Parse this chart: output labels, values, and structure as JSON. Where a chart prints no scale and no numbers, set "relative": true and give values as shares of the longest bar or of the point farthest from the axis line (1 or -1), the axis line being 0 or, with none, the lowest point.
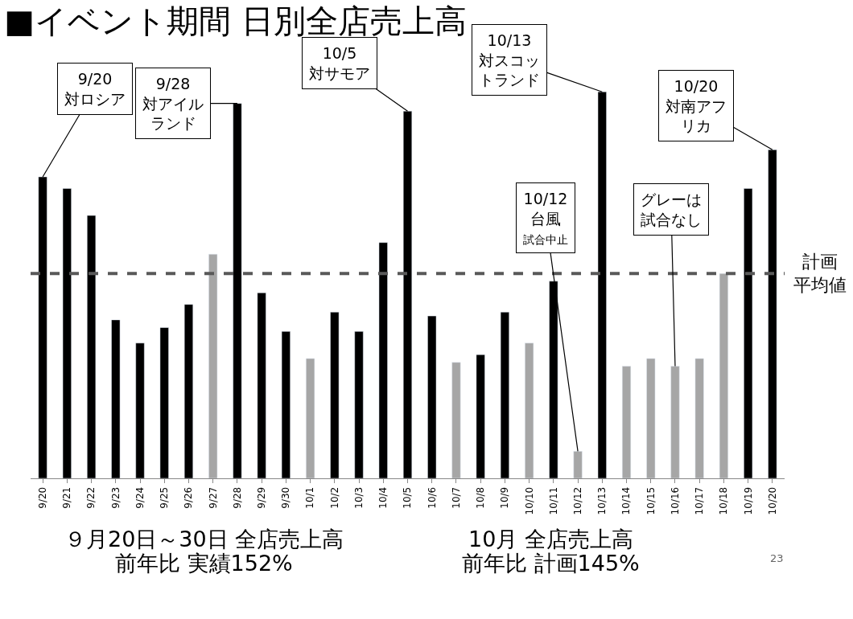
{
  "chart_data": {
    "type": "bar",
    "title": "■イベント期間 日別全店売上高",
    "relative": true,
    "categories": [
      "9/20",
      "9/21",
      "9/22",
      "9/23",
      "9/24",
      "9/25",
      "9/26",
      "9/27",
      "9/28",
      "9/29",
      "9/30",
      "10/1",
      "10/2",
      "10/3",
      "10/4",
      "10/5",
      "10/6",
      "10/7",
      "10/8",
      "10/9",
      "10/10",
      "10/11",
      "10/12",
      "10/13",
      "10/14",
      "10/15",
      "10/16",
      "10/17",
      "10/18",
      "10/19",
      "10/20"
    ],
    "values": [
      0.78,
      0.75,
      0.68,
      0.41,
      0.35,
      0.39,
      0.45,
      0.58,
      0.97,
      0.48,
      0.38,
      0.31,
      0.43,
      0.38,
      0.61,
      0.95,
      0.42,
      0.3,
      0.32,
      0.43,
      0.35,
      0.51,
      0.07,
      1.0,
      0.29,
      0.31,
      0.29,
      0.31,
      0.53,
      0.75,
      0.85
    ],
    "colors": [
      "#000000",
      "#000000",
      "#000000",
      "#000000",
      "#000000",
      "#000000",
      "#000000",
      "#a6a6a6",
      "#000000",
      "#000000",
      "#000000",
      "#a6a6a6",
      "#000000",
      "#000000",
      "#000000",
      "#000000",
      "#000000",
      "#a6a6a6",
      "#000000",
      "#000000",
      "#a6a6a6",
      "#000000",
      "#a6a6a6",
      "#000000",
      "#a6a6a6",
      "#a6a6a6",
      "#a6a6a6",
      "#a6a6a6",
      "#a6a6a6",
      "#000000",
      "#000000"
    ],
    "ref_lines": [
      {
        "axis": "y",
        "value": 0.53,
        "label": "計画平均値",
        "color": "#595959",
        "line_style": "dashed"
      }
    ],
    "annotations": [
      {
        "text": "9/20\n対ロシア",
        "x": "9/20",
        "y": 0.78
      },
      {
        "text": "9/28\n対アイルランド",
        "x": "9/28",
        "y": 0.97
      },
      {
        "text": "10/5\n対サモア",
        "x": "10/5",
        "y": 0.95
      },
      {
        "text": "10/13\n対スコットランド",
        "x": "10/13",
        "y": 1.0
      },
      {
        "text": "10/12\n台風試合中止",
        "x": "10/12",
        "y": 0.07
      },
      {
        "text": "グレーは試合なし",
        "x": "10/16",
        "y": 0.29
      },
      {
        "text": "10/20\n対南アフリカ",
        "x": "10/20",
        "y": 0.85
      },
      "９月20日～30日 全店売上高",
      "前年比 実績152%",
      "10月 全店売上高",
      "前年比 計画145%",
      "23"
    ]
  }
}
